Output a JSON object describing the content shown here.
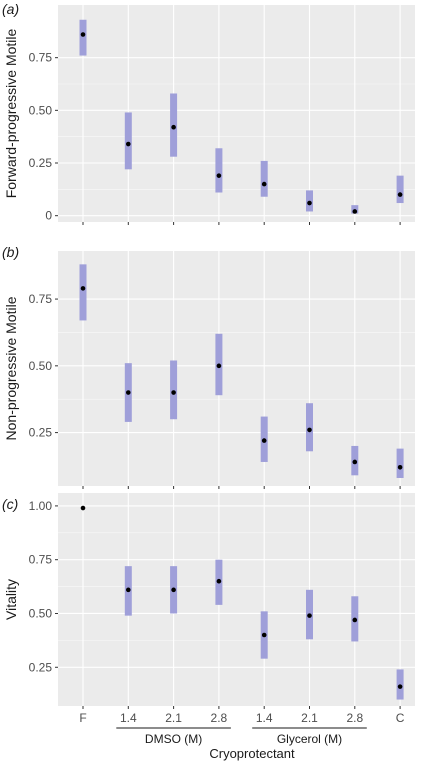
{
  "chart_data": [
    {
      "type": "scatter",
      "panel_label": "(a)",
      "ylabel": "Forward-progressive Motile",
      "categories": [
        "F",
        "1.4",
        "2.1",
        "2.8",
        "1.4",
        "2.1",
        "2.8",
        "C"
      ],
      "values": [
        0.86,
        0.34,
        0.42,
        0.19,
        0.15,
        0.06,
        0.02,
        0.1
      ],
      "lower": [
        0.76,
        0.22,
        0.28,
        0.11,
        0.09,
        0.02,
        0.01,
        0.06
      ],
      "upper": [
        0.93,
        0.49,
        0.58,
        0.32,
        0.26,
        0.12,
        0.05,
        0.19
      ],
      "ylim": [
        -0.03,
        1.0
      ],
      "yticks": [
        0,
        0.25,
        0.5,
        0.75
      ],
      "ytick_labels": [
        "0",
        "0.25",
        "0.50",
        "0.75"
      ]
    },
    {
      "type": "scatter",
      "panel_label": "(b)",
      "ylabel": "Non-progressive Motile",
      "categories": [
        "F",
        "1.4",
        "2.1",
        "2.8",
        "1.4",
        "2.1",
        "2.8",
        "C"
      ],
      "values": [
        0.79,
        0.4,
        0.4,
        0.5,
        0.22,
        0.26,
        0.14,
        0.12
      ],
      "lower": [
        0.67,
        0.29,
        0.3,
        0.39,
        0.14,
        0.18,
        0.09,
        0.08
      ],
      "upper": [
        0.88,
        0.51,
        0.52,
        0.62,
        0.31,
        0.36,
        0.2,
        0.19
      ],
      "ylim": [
        0.05,
        0.93
      ],
      "yticks": [
        0.25,
        0.5,
        0.75
      ],
      "ytick_labels": [
        "0.25",
        "0.50",
        "0.75"
      ]
    },
    {
      "type": "scatter",
      "panel_label": "(c)",
      "ylabel": "Vitality",
      "categories": [
        "F",
        "1.4",
        "2.1",
        "2.8",
        "1.4",
        "2.1",
        "2.8",
        "C"
      ],
      "values": [
        0.99,
        0.61,
        0.61,
        0.65,
        0.4,
        0.49,
        0.47,
        0.16
      ],
      "lower": [
        0.99,
        0.49,
        0.5,
        0.54,
        0.29,
        0.38,
        0.37,
        0.1
      ],
      "upper": [
        0.99,
        0.72,
        0.72,
        0.75,
        0.51,
        0.61,
        0.58,
        0.24
      ],
      "ylim": [
        0.07,
        1.06
      ],
      "yticks": [
        0.25,
        0.5,
        0.75,
        1.0
      ],
      "ytick_labels": [
        "0.25",
        "0.50",
        "0.75",
        "1.00"
      ]
    }
  ],
  "x_groups": [
    {
      "label": "DMSO (M)",
      "from": 1,
      "to": 3
    },
    {
      "label": "Glycerol (M)",
      "from": 4,
      "to": 6
    }
  ],
  "xlabel": "Cryoprotectant",
  "colors": {
    "panel_bg": "#ebebeb",
    "gridline": "#ffffff",
    "interval": "#9f9fd9",
    "point": "#000000"
  }
}
